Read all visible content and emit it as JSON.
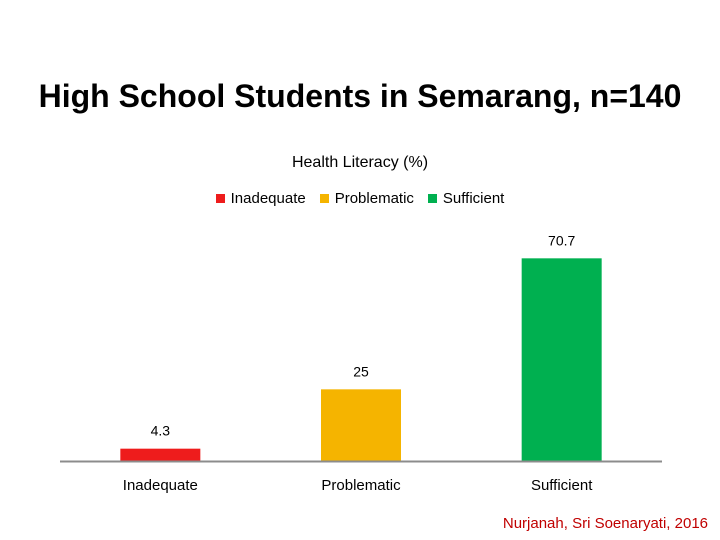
{
  "slide": {
    "title": "High School Students in Semarang, n=140",
    "citation": "Nurjanah, Sri Soenaryati, 2016"
  },
  "chart_data": {
    "type": "bar",
    "title": "Health Literacy (%)",
    "categories": [
      "Inadequate",
      "Problematic",
      "Sufficient"
    ],
    "values": [
      4.3,
      25,
      70.7
    ],
    "value_labels": [
      "4.3",
      "25",
      "70.7"
    ],
    "colors": [
      "#ee1c1c",
      "#f5b400",
      "#00b050"
    ],
    "legend": [
      {
        "label": "Inadequate",
        "color": "#ee1c1c"
      },
      {
        "label": "Problematic",
        "color": "#f5b400"
      },
      {
        "label": "Sufficient",
        "color": "#00b050"
      }
    ],
    "legend_position": "top",
    "xlabel": "",
    "ylabel": "",
    "ylim": [
      0,
      75
    ],
    "grid": false
  }
}
